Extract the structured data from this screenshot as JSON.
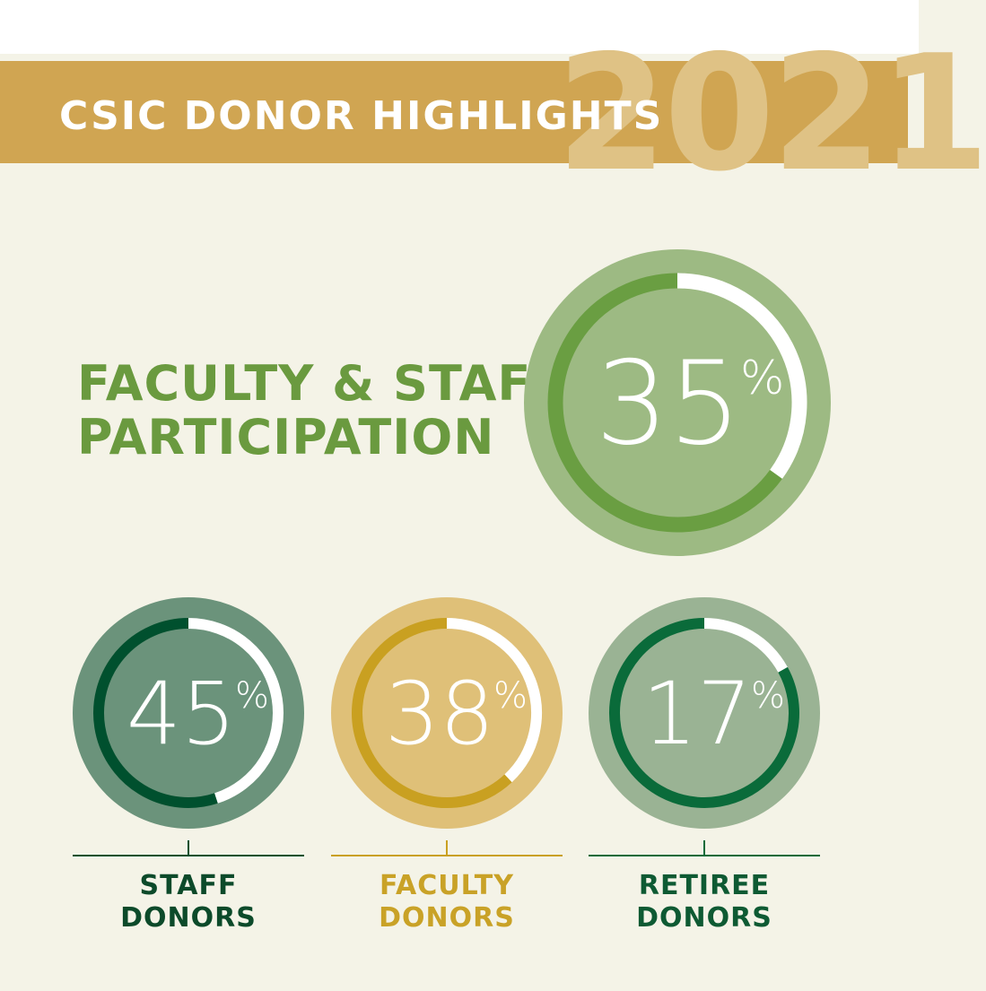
{
  "header": {
    "title": "CSIC DONOR HIGHLIGHTS",
    "year": "2021"
  },
  "headline": {
    "line1": "FACULTY & STAFF",
    "line2": "PARTICIPATION"
  },
  "chart_data": {
    "type": "pie",
    "items": [
      {
        "label": "FACULTY & STAFF PARTICIPATION",
        "value": 35,
        "display": "35",
        "outer": "#9dba83",
        "ring": "#6a9e42"
      },
      {
        "label": "STAFF DONORS",
        "line1": "STAFF",
        "line2": "DONORS",
        "value": 45,
        "display": "45",
        "outer": "#6b937b",
        "ring": "#00502e",
        "text": "#0c4a2a"
      },
      {
        "label": "FACULTY DONORS",
        "line1": "FACULTY",
        "line2": "DONORS",
        "value": 38,
        "display": "38",
        "outer": "#dfc078",
        "ring": "#c9a021",
        "text": "#c9a227"
      },
      {
        "label": "RETIREE DONORS",
        "line1": "RETIREE",
        "line2": "DONORS",
        "value": 17,
        "display": "17",
        "outer": "#9ab394",
        "ring": "#0a6b3a",
        "text": "#0e5a33"
      }
    ],
    "percent_symbol": "%"
  }
}
